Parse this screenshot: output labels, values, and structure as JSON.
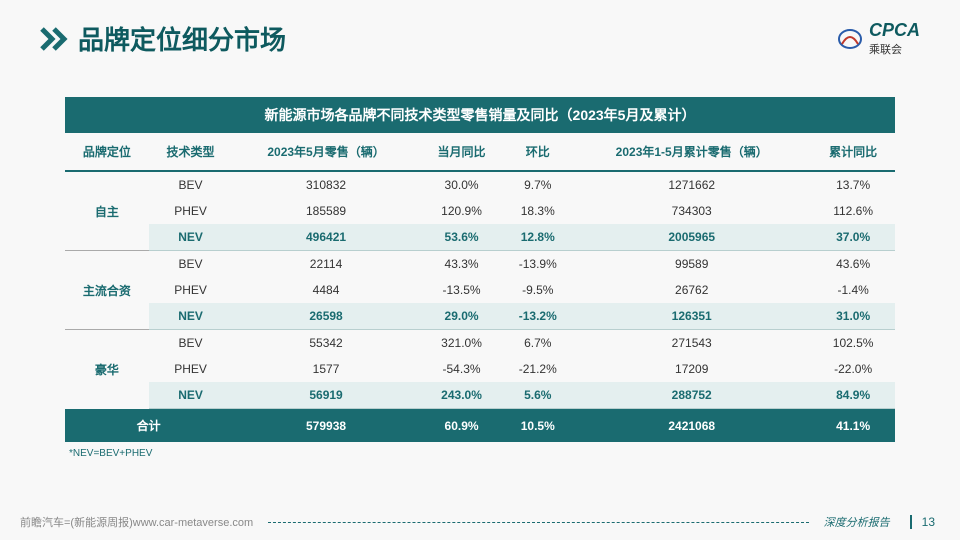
{
  "page": {
    "title": "品牌定位细分市场",
    "logo_main": "CPCA",
    "logo_sub": "乘联会",
    "page_number": "13",
    "report_label": "深度分析报告",
    "source": "前瞻汽车=(新能源周报)www.car-metaverse.com",
    "footnote": "*NEV=BEV+PHEV"
  },
  "table": {
    "banner": "新能源市场各品牌不同技术类型零售销量及同比（2023年5月及累计）",
    "columns": [
      "品牌定位",
      "技术类型",
      "2023年5月零售（辆）",
      "当月同比",
      "环比",
      "2023年1-5月累计零售（辆）",
      "累计同比"
    ],
    "groups": [
      {
        "label": "自主",
        "rows": [
          {
            "tech": "BEV",
            "may": "310832",
            "mom": "30.0%",
            "seq": "9.7%",
            "ytd": "1271662",
            "yoy": "13.7%",
            "nev": false
          },
          {
            "tech": "PHEV",
            "may": "185589",
            "mom": "120.9%",
            "seq": "18.3%",
            "ytd": "734303",
            "yoy": "112.6%",
            "nev": false
          },
          {
            "tech": "NEV",
            "may": "496421",
            "mom": "53.6%",
            "seq": "12.8%",
            "ytd": "2005965",
            "yoy": "37.0%",
            "nev": true
          }
        ]
      },
      {
        "label": "主流合资",
        "rows": [
          {
            "tech": "BEV",
            "may": "22114",
            "mom": "43.3%",
            "seq": "-13.9%",
            "ytd": "99589",
            "yoy": "43.6%",
            "nev": false
          },
          {
            "tech": "PHEV",
            "may": "4484",
            "mom": "-13.5%",
            "seq": "-9.5%",
            "ytd": "26762",
            "yoy": "-1.4%",
            "nev": false
          },
          {
            "tech": "NEV",
            "may": "26598",
            "mom": "29.0%",
            "seq": "-13.2%",
            "ytd": "126351",
            "yoy": "31.0%",
            "nev": true
          }
        ]
      },
      {
        "label": "豪华",
        "rows": [
          {
            "tech": "BEV",
            "may": "55342",
            "mom": "321.0%",
            "seq": "6.7%",
            "ytd": "271543",
            "yoy": "102.5%",
            "nev": false
          },
          {
            "tech": "PHEV",
            "may": "1577",
            "mom": "-54.3%",
            "seq": "-21.2%",
            "ytd": "17209",
            "yoy": "-22.0%",
            "nev": false
          },
          {
            "tech": "NEV",
            "may": "56919",
            "mom": "243.0%",
            "seq": "5.6%",
            "ytd": "288752",
            "yoy": "84.9%",
            "nev": true
          }
        ]
      }
    ],
    "total": {
      "label": "合计",
      "may": "579938",
      "mom": "60.9%",
      "seq": "10.5%",
      "ytd": "2421068",
      "yoy": "41.1%"
    }
  },
  "colors": {
    "primary": "#1a6b70",
    "nev_bg": "#e4efef",
    "page_bg": "#f8f8f8"
  }
}
